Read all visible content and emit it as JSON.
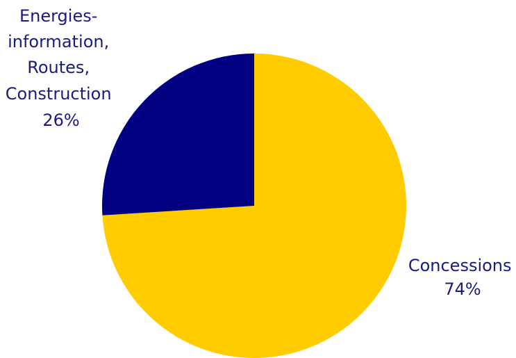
{
  "chart_data": {
    "type": "pie",
    "start_angle_deg": 0,
    "direction": "clockwise",
    "slices": [
      {
        "label_lines": [
          "Concessions"
        ],
        "percent_text": "74%",
        "value": 74,
        "color": "#FFCC00"
      },
      {
        "label_lines": [
          "Energies-",
          "information,",
          "Routes,",
          "Construction"
        ],
        "percent_text": "26%",
        "value": 26,
        "color": "#000080"
      }
    ],
    "label_color": "#1A1A80",
    "legend": "none"
  }
}
